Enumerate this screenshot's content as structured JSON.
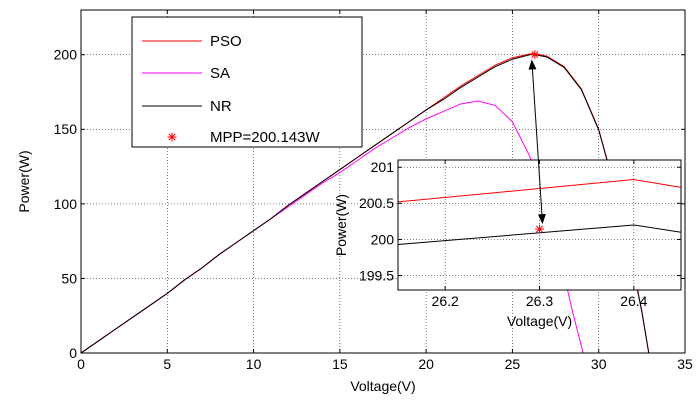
{
  "chart_data": [
    {
      "type": "line",
      "role": "main",
      "xlabel": "Voltage(V)",
      "ylabel": "Power(W)",
      "xlim": [
        0,
        35
      ],
      "ylim": [
        0,
        230
      ],
      "xticks": [
        0,
        5,
        10,
        15,
        20,
        25,
        30,
        35
      ],
      "yticks": [
        0,
        50,
        100,
        150,
        200
      ],
      "grid": true,
      "legend_position": "top-left",
      "series": [
        {
          "name": "PSO",
          "color": "#ff0000",
          "x": [
            0,
            1,
            2,
            3,
            4,
            5,
            6,
            7,
            8,
            9,
            10,
            11,
            12,
            13,
            14,
            15,
            16,
            17,
            18,
            19,
            20,
            21,
            22,
            23,
            24,
            25,
            26,
            26.3,
            27,
            28,
            29,
            30,
            31,
            32,
            32.5,
            32.9
          ],
          "y": [
            0,
            8,
            16,
            24,
            32,
            40,
            49,
            57,
            66,
            74,
            82,
            90,
            99,
            107,
            115,
            123,
            131,
            139,
            147,
            155,
            163,
            171,
            179,
            186,
            193,
            198,
            200.5,
            200.8,
            199,
            192,
            177,
            150,
            108,
            57,
            28,
            0
          ]
        },
        {
          "name": "SA",
          "color": "#ff00ff",
          "x": [
            0,
            1,
            2,
            3,
            4,
            5,
            6,
            7,
            8,
            9,
            10,
            11,
            12,
            13,
            14,
            15,
            16,
            17,
            18,
            19,
            20,
            21,
            22,
            23,
            24,
            25,
            26,
            27,
            28,
            28.5,
            29.1
          ],
          "y": [
            0,
            8,
            16,
            24,
            32,
            40,
            49,
            57,
            66,
            74,
            82,
            90,
            98,
            106,
            114,
            121,
            129,
            137,
            144,
            151,
            157,
            162,
            167,
            169,
            166,
            155,
            132,
            97,
            52,
            27,
            0
          ]
        },
        {
          "name": "NR",
          "color": "#000000",
          "x": [
            0,
            1,
            2,
            3,
            4,
            5,
            6,
            7,
            8,
            9,
            10,
            11,
            12,
            13,
            14,
            15,
            16,
            17,
            18,
            19,
            20,
            21,
            22,
            23,
            24,
            25,
            26,
            26.3,
            27,
            28,
            29,
            30,
            31,
            32,
            32.5,
            32.9
          ],
          "y": [
            0,
            8,
            16,
            24,
            32,
            40,
            49,
            57,
            66,
            74,
            82,
            90,
            99,
            107,
            115,
            123,
            131,
            139,
            147,
            155,
            163,
            170,
            178,
            185,
            192,
            197,
            200,
            200.1,
            198.5,
            191.5,
            176.5,
            149.5,
            107.5,
            56.5,
            27.5,
            0
          ]
        }
      ],
      "mpp": {
        "label": "MPP=200.143W",
        "color": "#ff0000",
        "x": 26.3,
        "y": 200.143
      }
    },
    {
      "type": "line",
      "role": "inset",
      "xlabel": "Voltage(V)",
      "ylabel": "Power(W)",
      "xlim": [
        26.15,
        26.45
      ],
      "ylim": [
        199.3,
        201.1
      ],
      "xticks": [
        26.2,
        26.3,
        26.4
      ],
      "yticks": [
        199.5,
        200,
        200.5,
        201
      ],
      "grid": true,
      "series": [
        {
          "name": "PSO",
          "color": "#ff0000",
          "x": [
            26.15,
            26.4,
            26.45
          ],
          "y": [
            200.52,
            200.83,
            200.72
          ]
        },
        {
          "name": "NR",
          "color": "#000000",
          "x": [
            26.15,
            26.4,
            26.45
          ],
          "y": [
            199.93,
            200.2,
            200.1
          ]
        }
      ],
      "mpp": {
        "color": "#ff0000",
        "x": 26.3,
        "y": 200.143
      }
    }
  ]
}
